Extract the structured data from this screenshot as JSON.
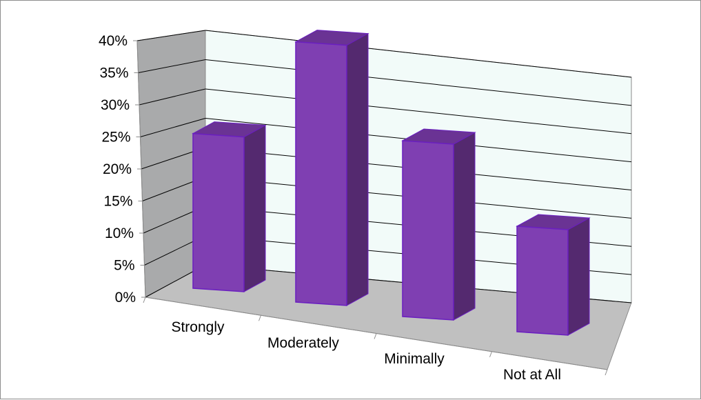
{
  "chart_data": {
    "type": "bar",
    "title": "",
    "xlabel": "",
    "ylabel": "",
    "categories": [
      "Strongly",
      "Moderately",
      "Minimally",
      "Not at All"
    ],
    "values": [
      22,
      37,
      25,
      15
    ],
    "ylim": [
      0,
      40
    ],
    "yticks": [
      "0%",
      "5%",
      "10%",
      "15%",
      "20%",
      "25%",
      "30%",
      "35%",
      "40%"
    ],
    "grid": true,
    "legend": "none",
    "three_d": true,
    "colors": {
      "bar_front": "#7f3fb2",
      "bar_side": "#54296f",
      "bar_top": "#6a3394",
      "bar_edge": "#6a1fc0",
      "back_wall": "#f2fbf9",
      "side_wall": "#a9aaab",
      "floor": "#c0c0c0",
      "gridline": "#000000"
    }
  }
}
